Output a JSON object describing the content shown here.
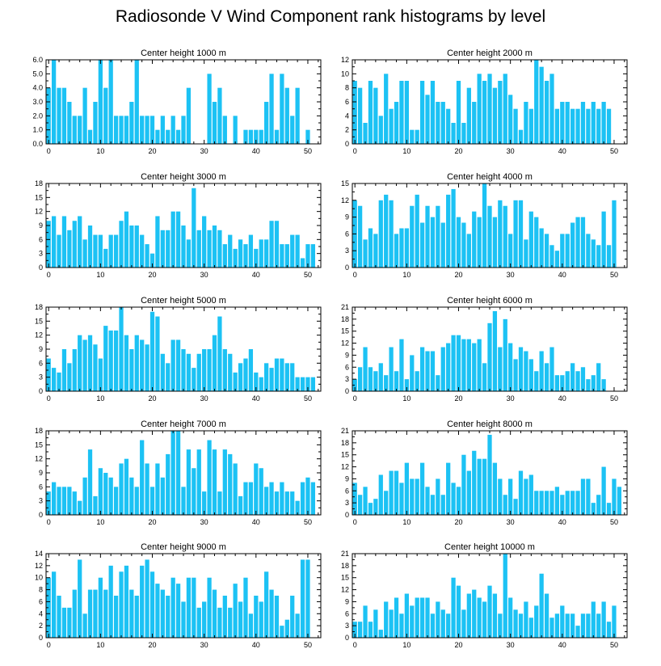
{
  "figure_title": "Radiosonde V Wind Component rank histograms by level",
  "colors": {
    "bar": "#1cc2f4",
    "axis": "#000000",
    "background": "#ffffff"
  },
  "chart_data": [
    {
      "type": "bar",
      "title": "Center height 1000 m",
      "xlim": [
        -0.5,
        52.5
      ],
      "xticks": [
        0,
        10,
        20,
        30,
        40,
        50
      ],
      "ylim": [
        0,
        6
      ],
      "yticks": [
        0,
        1,
        2,
        3,
        4,
        5,
        6
      ],
      "yticklabels": [
        "0.0",
        "1.0",
        "2.0",
        "3.0",
        "4.0",
        "5.0",
        "6.0"
      ],
      "values": [
        4,
        6,
        4,
        4,
        3,
        2,
        2,
        4,
        1,
        3,
        6,
        4,
        6,
        2,
        2,
        2,
        3,
        6,
        2,
        2,
        2,
        1,
        2,
        1,
        2,
        1,
        2,
        4,
        0,
        0,
        0,
        5,
        3,
        4,
        2,
        0,
        2,
        0,
        1,
        1,
        1,
        1,
        3,
        5,
        1,
        5,
        4,
        2,
        4,
        0,
        1,
        0,
        0
      ]
    },
    {
      "type": "bar",
      "title": "Center height 2000 m",
      "xlim": [
        -0.5,
        52.5
      ],
      "xticks": [
        0,
        10,
        20,
        30,
        40,
        50
      ],
      "ylim": [
        0,
        12
      ],
      "yticks": [
        0,
        2,
        4,
        6,
        8,
        10,
        12
      ],
      "yticklabels": [
        "0",
        "2",
        "4",
        "6",
        "8",
        "10",
        "12"
      ],
      "values": [
        9,
        8,
        3,
        9,
        8,
        4,
        10,
        5,
        6,
        9,
        9,
        2,
        2,
        9,
        7,
        9,
        6,
        6,
        5,
        3,
        9,
        3,
        8,
        6,
        10,
        9,
        10,
        8,
        9,
        10,
        7,
        5,
        2,
        6,
        5,
        12,
        11,
        9,
        10,
        5,
        6,
        6,
        5,
        5,
        6,
        5,
        6,
        5,
        6,
        5,
        0,
        0,
        0
      ]
    },
    {
      "type": "bar",
      "title": "Center height 3000 m",
      "xlim": [
        -0.5,
        52.5
      ],
      "xticks": [
        0,
        10,
        20,
        30,
        40,
        50
      ],
      "ylim": [
        0,
        18
      ],
      "yticks": [
        0,
        3,
        6,
        9,
        12,
        15,
        18
      ],
      "yticklabels": [
        "0",
        "3",
        "6",
        "9",
        "12",
        "15",
        "18"
      ],
      "values": [
        10,
        11,
        7,
        11,
        8,
        10,
        11,
        6,
        9,
        7,
        7,
        4,
        7,
        7,
        10,
        12,
        9,
        9,
        7,
        5,
        3,
        11,
        8,
        8,
        12,
        12,
        9,
        6,
        17,
        8,
        11,
        8,
        9,
        8,
        5,
        7,
        4,
        6,
        5,
        7,
        4,
        6,
        6,
        10,
        10,
        5,
        5,
        7,
        7,
        2,
        5,
        5,
        0
      ]
    },
    {
      "type": "bar",
      "title": "Center height 4000 m",
      "xlim": [
        -0.5,
        52.5
      ],
      "xticks": [
        0,
        10,
        20,
        30,
        40,
        50
      ],
      "ylim": [
        0,
        15
      ],
      "yticks": [
        0,
        3,
        6,
        9,
        12,
        15
      ],
      "yticklabels": [
        "0",
        "3",
        "6",
        "9",
        "12",
        "15"
      ],
      "values": [
        12,
        11,
        5,
        7,
        6,
        12,
        13,
        12,
        6,
        7,
        7,
        11,
        13,
        8,
        11,
        9,
        11,
        8,
        13,
        14,
        9,
        8,
        6,
        10,
        9,
        15,
        11,
        9,
        12,
        11,
        6,
        12,
        12,
        5,
        10,
        9,
        7,
        6,
        4,
        3,
        6,
        6,
        8,
        9,
        9,
        6,
        5,
        4,
        10,
        4,
        12,
        0,
        0
      ]
    },
    {
      "type": "bar",
      "title": "Center height 5000 m",
      "xlim": [
        -0.5,
        52.5
      ],
      "xticks": [
        0,
        10,
        20,
        30,
        40,
        50
      ],
      "ylim": [
        0,
        18
      ],
      "yticks": [
        0,
        3,
        6,
        9,
        12,
        15,
        18
      ],
      "yticklabels": [
        "0",
        "3",
        "6",
        "9",
        "12",
        "15",
        "18"
      ],
      "values": [
        7,
        5,
        4,
        9,
        6,
        9,
        12,
        11,
        12,
        10,
        7,
        14,
        13,
        13,
        18,
        12,
        9,
        12,
        11,
        10,
        17,
        16,
        8,
        6,
        11,
        11,
        9,
        8,
        5,
        8,
        9,
        9,
        12,
        16,
        9,
        8,
        4,
        6,
        7,
        9,
        4,
        3,
        6,
        5,
        7,
        7,
        6,
        6,
        3,
        3,
        3,
        3,
        0
      ]
    },
    {
      "type": "bar",
      "title": "Center height 6000 m",
      "xlim": [
        -0.5,
        52.5
      ],
      "xticks": [
        0,
        10,
        20,
        30,
        40,
        50
      ],
      "ylim": [
        0,
        21
      ],
      "yticks": [
        0,
        3,
        6,
        9,
        12,
        15,
        18,
        21
      ],
      "yticklabels": [
        "0",
        "3",
        "6",
        "9",
        "12",
        "15",
        "18",
        "21"
      ],
      "values": [
        3,
        6,
        11,
        6,
        5,
        7,
        4,
        11,
        5,
        13,
        3,
        9,
        5,
        11,
        10,
        10,
        4,
        11,
        12,
        14,
        14,
        13,
        13,
        12,
        13,
        7,
        17,
        20,
        11,
        18,
        12,
        8,
        11,
        10,
        8,
        5,
        10,
        7,
        11,
        4,
        4,
        5,
        7,
        5,
        6,
        3,
        4,
        7,
        3,
        0,
        0,
        0,
        0
      ]
    },
    {
      "type": "bar",
      "title": "Center height 7000 m",
      "xlim": [
        -0.5,
        52.5
      ],
      "xticks": [
        0,
        10,
        20,
        30,
        40,
        50
      ],
      "ylim": [
        0,
        18
      ],
      "yticks": [
        0,
        3,
        6,
        9,
        12,
        15,
        18
      ],
      "yticklabels": [
        "0",
        "3",
        "6",
        "9",
        "12",
        "15",
        "18"
      ],
      "values": [
        5,
        7,
        6,
        6,
        6,
        5,
        3,
        8,
        14,
        4,
        10,
        9,
        8,
        6,
        11,
        12,
        8,
        6,
        16,
        11,
        6,
        11,
        8,
        13,
        18,
        18,
        6,
        14,
        10,
        14,
        5,
        16,
        14,
        5,
        14,
        13,
        11,
        4,
        7,
        7,
        11,
        10,
        6,
        7,
        5,
        7,
        5,
        5,
        3,
        7,
        8,
        7,
        0
      ]
    },
    {
      "type": "bar",
      "title": "Center height 8000 m",
      "xlim": [
        -0.5,
        52.5
      ],
      "xticks": [
        0,
        10,
        20,
        30,
        40,
        50
      ],
      "ylim": [
        0,
        21
      ],
      "yticks": [
        0,
        3,
        6,
        9,
        12,
        15,
        18,
        21
      ],
      "yticklabels": [
        "0",
        "3",
        "6",
        "9",
        "12",
        "15",
        "18",
        "21"
      ],
      "values": [
        8,
        5,
        7,
        3,
        4,
        10,
        6,
        11,
        11,
        8,
        13,
        9,
        9,
        13,
        7,
        5,
        9,
        5,
        13,
        8,
        7,
        15,
        11,
        16,
        14,
        14,
        20,
        13,
        9,
        5,
        9,
        4,
        11,
        9,
        10,
        6,
        6,
        6,
        6,
        7,
        5,
        6,
        6,
        6,
        9,
        9,
        3,
        5,
        12,
        3,
        9,
        7,
        0
      ]
    },
    {
      "type": "bar",
      "title": "Center height 9000 m",
      "xlim": [
        -0.5,
        52.5
      ],
      "xticks": [
        0,
        10,
        20,
        30,
        40,
        50
      ],
      "ylim": [
        0,
        14
      ],
      "yticks": [
        0,
        2,
        4,
        6,
        8,
        10,
        12,
        14
      ],
      "yticklabels": [
        "0",
        "2",
        "4",
        "6",
        "8",
        "10",
        "12",
        "14"
      ],
      "values": [
        10,
        11,
        7,
        5,
        5,
        8,
        13,
        4,
        8,
        8,
        10,
        8,
        12,
        7,
        11,
        12,
        8,
        7,
        12,
        13,
        11,
        9,
        8,
        7,
        10,
        9,
        6,
        10,
        10,
        5,
        6,
        10,
        8,
        5,
        7,
        5,
        9,
        6,
        10,
        4,
        7,
        6,
        11,
        8,
        7,
        2,
        3,
        7,
        4,
        13,
        13,
        0,
        0
      ]
    },
    {
      "type": "bar",
      "title": "Center height 10000 m",
      "xlim": [
        -0.5,
        52.5
      ],
      "xticks": [
        0,
        10,
        20,
        30,
        40,
        50
      ],
      "ylim": [
        0,
        21
      ],
      "yticks": [
        0,
        3,
        6,
        9,
        12,
        15,
        18,
        21
      ],
      "yticklabels": [
        "0",
        "3",
        "6",
        "9",
        "12",
        "15",
        "18",
        "21"
      ],
      "values": [
        4,
        4,
        8,
        4,
        7,
        2,
        9,
        7,
        10,
        6,
        11,
        8,
        10,
        10,
        10,
        6,
        9,
        7,
        6,
        15,
        13,
        7,
        11,
        12,
        10,
        9,
        13,
        11,
        6,
        21,
        10,
        7,
        6,
        9,
        5,
        8,
        16,
        11,
        5,
        6,
        8,
        6,
        6,
        3,
        6,
        6,
        9,
        6,
        9,
        4,
        8,
        0,
        0
      ]
    }
  ]
}
